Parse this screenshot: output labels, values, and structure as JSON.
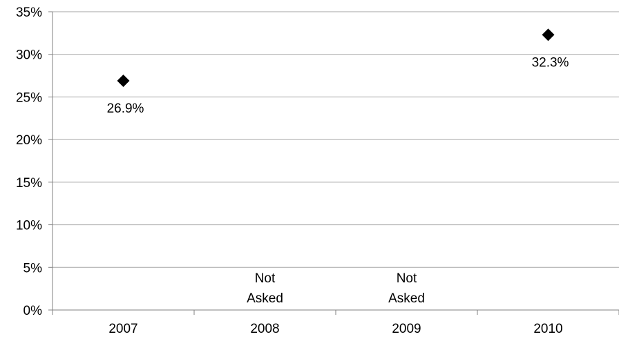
{
  "chart_data": {
    "type": "scatter",
    "categories": [
      "2007",
      "2008",
      "2009",
      "2010"
    ],
    "series": [
      {
        "values": [
          26.9,
          null,
          null,
          32.3
        ],
        "data_labels": [
          "26.9%",
          null,
          null,
          "32.3%"
        ],
        "marker": "diamond",
        "color": "#000000"
      }
    ],
    "annotations": [
      {
        "category": "2008",
        "lines": [
          "Not",
          "Asked"
        ]
      },
      {
        "category": "2009",
        "lines": [
          "Not",
          "Asked"
        ]
      }
    ],
    "yticks": [
      "0%",
      "5%",
      "10%",
      "15%",
      "20%",
      "25%",
      "30%",
      "35%"
    ],
    "ylim": [
      0,
      35
    ],
    "y_step": 5,
    "grid": true,
    "grid_color": "#a6a6a6",
    "legend": "none"
  }
}
